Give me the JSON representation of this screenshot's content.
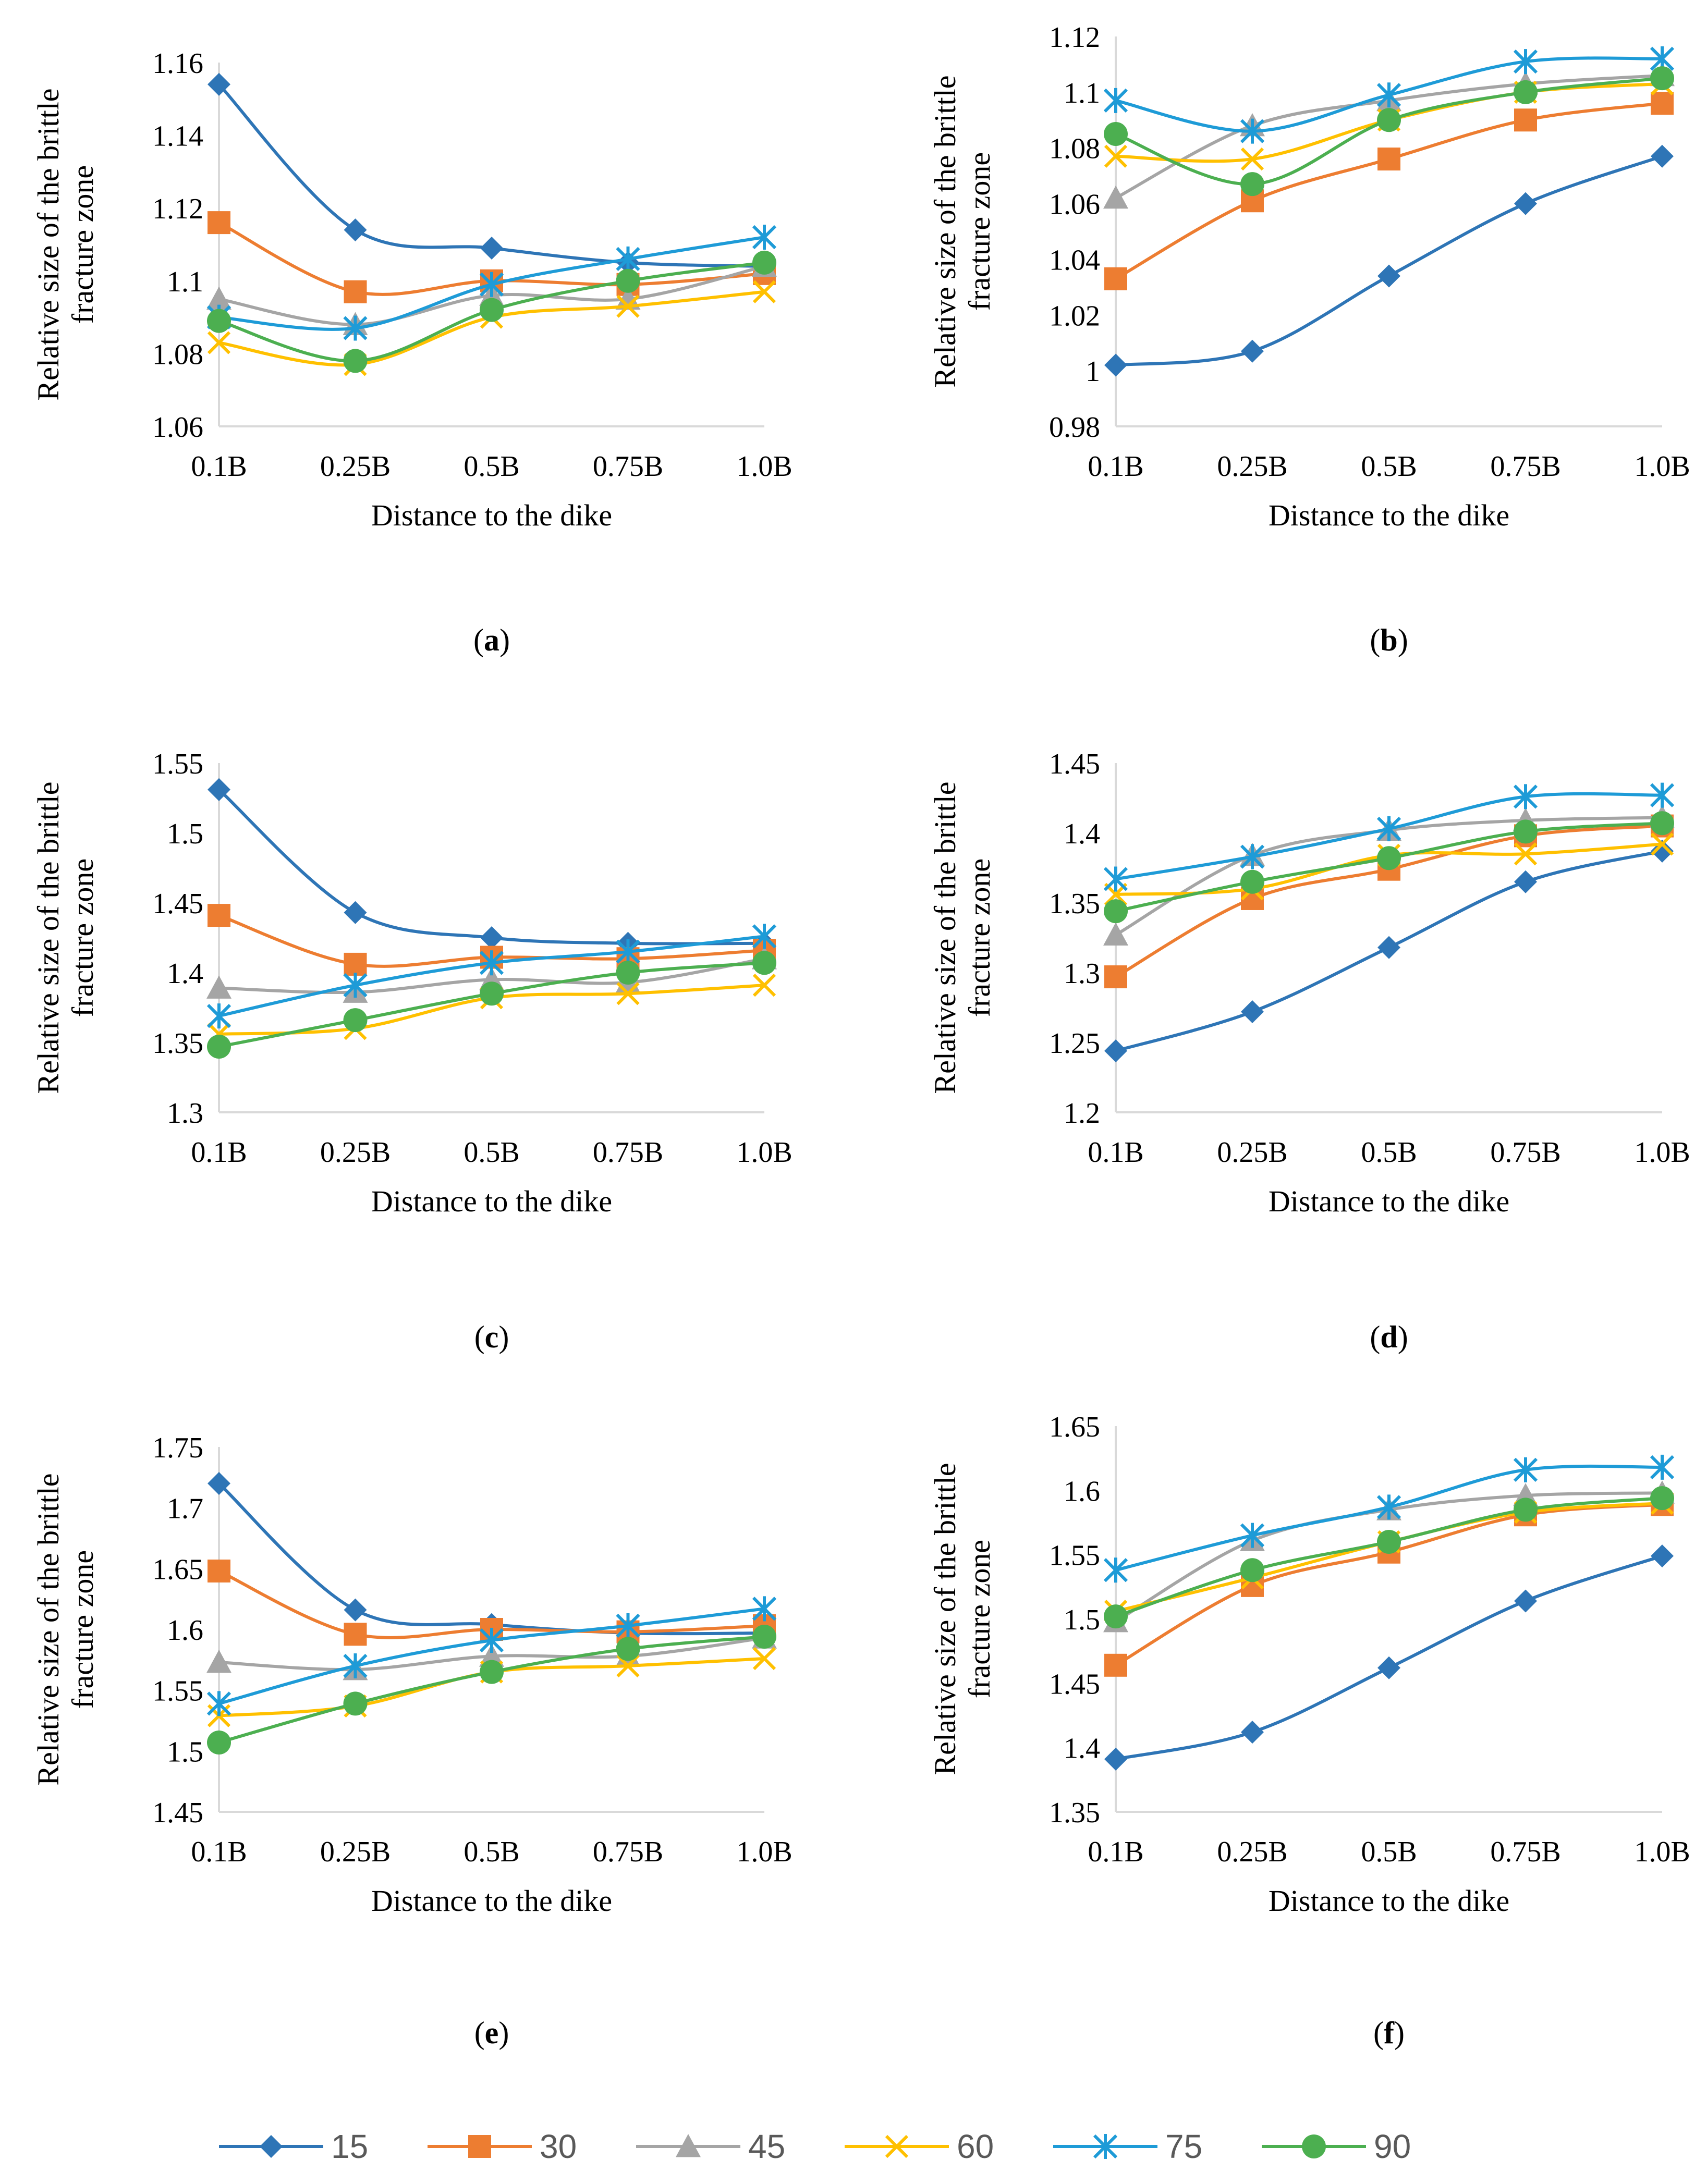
{
  "figure": {
    "legend": [
      {
        "name": "15",
        "color": "#2E75B6",
        "marker": "diamond"
      },
      {
        "name": "30",
        "color": "#ED7D31",
        "marker": "square"
      },
      {
        "name": "45",
        "color": "#A5A5A5",
        "marker": "triangle"
      },
      {
        "name": "60",
        "color": "#FFC000",
        "marker": "x"
      },
      {
        "name": "75",
        "color": "#1E9BD7",
        "marker": "star"
      },
      {
        "name": "90",
        "color": "#4CAF50",
        "marker": "circle"
      }
    ]
  },
  "chart_data": [
    {
      "type": "line",
      "panel_label": "a",
      "xlabel": "Distance to the dike",
      "ylabel_lines": [
        "Relative size of the brittle",
        "fracture zone"
      ],
      "categories": [
        "0.1B",
        "0.25B",
        "0.5B",
        "0.75B",
        "1.0B"
      ],
      "ylim": [
        1.06,
        1.16
      ],
      "yticks": [
        "1.06",
        "1.08",
        "1.1",
        "1.12",
        "1.14",
        "1.16"
      ],
      "series": [
        {
          "name": "15",
          "values": [
            1.154,
            1.114,
            1.109,
            1.105,
            1.104
          ]
        },
        {
          "name": "30",
          "values": [
            1.116,
            1.097,
            1.1,
            1.099,
            1.102
          ]
        },
        {
          "name": "45",
          "values": [
            1.095,
            1.088,
            1.096,
            1.095,
            1.104
          ]
        },
        {
          "name": "60",
          "values": [
            1.083,
            1.077,
            1.09,
            1.093,
            1.097
          ]
        },
        {
          "name": "75",
          "values": [
            1.09,
            1.087,
            1.099,
            1.106,
            1.112
          ]
        },
        {
          "name": "90",
          "values": [
            1.089,
            1.078,
            1.092,
            1.1,
            1.105
          ]
        }
      ]
    },
    {
      "type": "line",
      "panel_label": "b",
      "xlabel": "Distance to the dike",
      "ylabel_lines": [
        "Relative size of the brittle",
        "fracture zone"
      ],
      "categories": [
        "0.1B",
        "0.25B",
        "0.5B",
        "0.75B",
        "1.0B"
      ],
      "ylim": [
        0.98,
        1.12
      ],
      "yticks": [
        "0.98",
        "1",
        "1.02",
        "1.04",
        "1.06",
        "1.08",
        "1.1",
        "1.12"
      ],
      "series": [
        {
          "name": "15",
          "values": [
            1.002,
            1.007,
            1.034,
            1.06,
            1.077
          ]
        },
        {
          "name": "30",
          "values": [
            1.033,
            1.061,
            1.076,
            1.09,
            1.096
          ]
        },
        {
          "name": "45",
          "values": [
            1.062,
            1.088,
            1.097,
            1.103,
            1.106
          ]
        },
        {
          "name": "60",
          "values": [
            1.077,
            1.076,
            1.09,
            1.1,
            1.103
          ]
        },
        {
          "name": "75",
          "values": [
            1.097,
            1.086,
            1.099,
            1.111,
            1.112
          ]
        },
        {
          "name": "90",
          "values": [
            1.085,
            1.067,
            1.09,
            1.1,
            1.105
          ]
        }
      ]
    },
    {
      "type": "line",
      "panel_label": "c",
      "xlabel": "Distance to the dike",
      "ylabel_lines": [
        "Relative size of the brittle",
        "fracture zone"
      ],
      "categories": [
        "0.1B",
        "0.25B",
        "0.5B",
        "0.75B",
        "1.0B"
      ],
      "ylim": [
        1.3,
        1.55
      ],
      "yticks": [
        "1.3",
        "1.35",
        "1.4",
        "1.45",
        "1.5",
        "1.55"
      ],
      "series": [
        {
          "name": "15",
          "values": [
            1.531,
            1.443,
            1.425,
            1.421,
            1.421
          ]
        },
        {
          "name": "30",
          "values": [
            1.441,
            1.406,
            1.411,
            1.41,
            1.416
          ]
        },
        {
          "name": "45",
          "values": [
            1.389,
            1.386,
            1.395,
            1.393,
            1.41
          ]
        },
        {
          "name": "60",
          "values": [
            1.356,
            1.36,
            1.382,
            1.385,
            1.391
          ]
        },
        {
          "name": "75",
          "values": [
            1.369,
            1.391,
            1.407,
            1.415,
            1.426
          ]
        },
        {
          "name": "90",
          "values": [
            1.347,
            1.366,
            1.385,
            1.4,
            1.407
          ]
        }
      ]
    },
    {
      "type": "line",
      "panel_label": "d",
      "xlabel": "Distance to the dike",
      "ylabel_lines": [
        "Relative size of the brittle",
        "fracture zone"
      ],
      "categories": [
        "0.1B",
        "0.25B",
        "0.5B",
        "0.75B",
        "1.0B"
      ],
      "ylim": [
        1.2,
        1.45
      ],
      "yticks": [
        "1.2",
        "1.25",
        "1.3",
        "1.35",
        "1.4",
        "1.45"
      ],
      "series": [
        {
          "name": "15",
          "values": [
            1.244,
            1.272,
            1.318,
            1.365,
            1.387
          ]
        },
        {
          "name": "30",
          "values": [
            1.297,
            1.353,
            1.374,
            1.398,
            1.405
          ]
        },
        {
          "name": "45",
          "values": [
            1.327,
            1.384,
            1.402,
            1.409,
            1.411
          ]
        },
        {
          "name": "60",
          "values": [
            1.356,
            1.36,
            1.384,
            1.385,
            1.392
          ]
        },
        {
          "name": "75",
          "values": [
            1.367,
            1.383,
            1.403,
            1.426,
            1.427
          ]
        },
        {
          "name": "90",
          "values": [
            1.344,
            1.365,
            1.382,
            1.401,
            1.407
          ]
        }
      ]
    },
    {
      "type": "line",
      "panel_label": "e",
      "xlabel": "Distance to the dike",
      "ylabel_lines": [
        "Relative size of the brittle",
        "fracture zone"
      ],
      "categories": [
        "0.1B",
        "0.25B",
        "0.5B",
        "0.75B",
        "1.0B"
      ],
      "ylim": [
        1.45,
        1.75
      ],
      "yticks": [
        "1.45",
        "1.5",
        "1.55",
        "1.6",
        "1.65",
        "1.7",
        "1.75"
      ],
      "series": [
        {
          "name": "15",
          "values": [
            1.72,
            1.616,
            1.604,
            1.597,
            1.597
          ]
        },
        {
          "name": "30",
          "values": [
            1.648,
            1.596,
            1.6,
            1.598,
            1.603
          ]
        },
        {
          "name": "45",
          "values": [
            1.573,
            1.567,
            1.578,
            1.578,
            1.593
          ]
        },
        {
          "name": "60",
          "values": [
            1.529,
            1.537,
            1.565,
            1.57,
            1.576
          ]
        },
        {
          "name": "75",
          "values": [
            1.539,
            1.57,
            1.591,
            1.603,
            1.617
          ]
        },
        {
          "name": "90",
          "values": [
            1.507,
            1.539,
            1.565,
            1.584,
            1.594
          ]
        }
      ]
    },
    {
      "type": "line",
      "panel_label": "f",
      "xlabel": "Distance to the dike",
      "ylabel_lines": [
        "Relative size of the brittle",
        "fracture zone"
      ],
      "categories": [
        "0.1B",
        "0.25B",
        "0.5B",
        "0.75B",
        "1.0B"
      ],
      "ylim": [
        1.35,
        1.65
      ],
      "yticks": [
        "1.35",
        "1.4",
        "1.45",
        "1.5",
        "1.55",
        "1.6",
        "1.65"
      ],
      "series": [
        {
          "name": "15",
          "values": [
            1.391,
            1.412,
            1.462,
            1.514,
            1.549
          ]
        },
        {
          "name": "30",
          "values": [
            1.464,
            1.526,
            1.552,
            1.581,
            1.589
          ]
        },
        {
          "name": "45",
          "values": [
            1.498,
            1.561,
            1.585,
            1.596,
            1.598
          ]
        },
        {
          "name": "60",
          "values": [
            1.506,
            1.532,
            1.56,
            1.583,
            1.59
          ]
        },
        {
          "name": "75",
          "values": [
            1.538,
            1.565,
            1.587,
            1.616,
            1.618
          ]
        },
        {
          "name": "90",
          "values": [
            1.502,
            1.538,
            1.56,
            1.585,
            1.594
          ]
        }
      ]
    }
  ]
}
